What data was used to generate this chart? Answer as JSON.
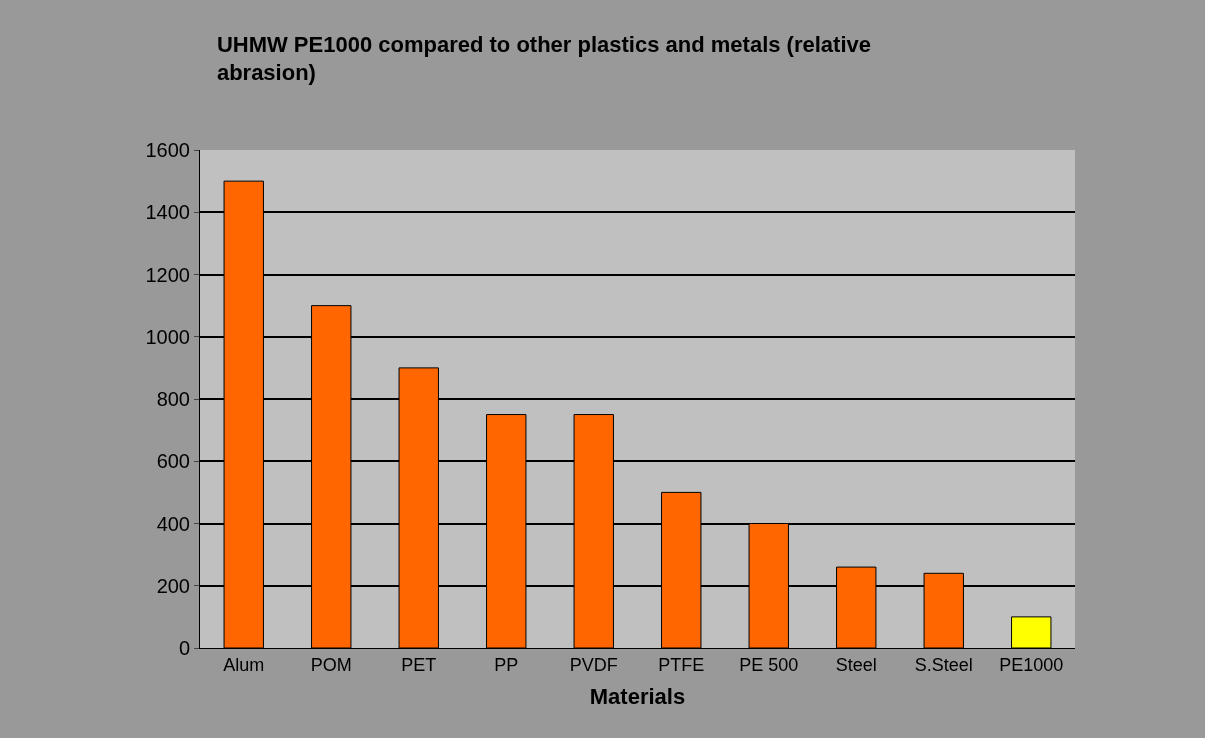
{
  "chart_data": {
    "type": "bar",
    "title": "UHMW PE1000 compared to other plastics and metals (relative abrasion)",
    "xlabel": "Materials",
    "categories": [
      "Alum",
      "POM",
      "PET",
      "PP",
      "PVDF",
      "PTFE",
      "PE 500",
      "Steel",
      "S.Steel",
      "PE1000"
    ],
    "values": [
      1500,
      1100,
      900,
      750,
      750,
      500,
      400,
      260,
      240,
      100
    ],
    "colors": [
      "#ff6600",
      "#ff6600",
      "#ff6600",
      "#ff6600",
      "#ff6600",
      "#ff6600",
      "#ff6600",
      "#ff6600",
      "#ff6600",
      "#ffff00"
    ],
    "ylim": [
      0,
      1600
    ],
    "yticks": [
      0,
      200,
      400,
      600,
      800,
      1000,
      1200,
      1400,
      1600
    ],
    "grid": "y"
  }
}
